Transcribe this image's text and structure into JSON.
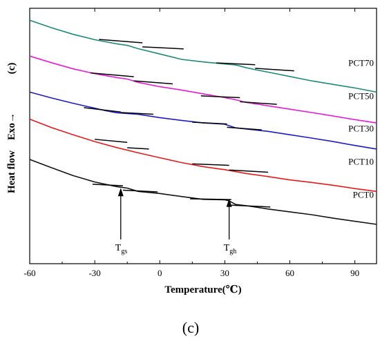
{
  "chart_data": {
    "type": "line",
    "title": "",
    "xlabel": "Temperature(℃)",
    "ylabel": "Heat flow",
    "ylabel_direction": "Exo→",
    "ylabel_marker": "(c)",
    "xlim": [
      -60,
      100
    ],
    "ylim": [
      0,
      100
    ],
    "x_ticks": [
      -60,
      -30,
      0,
      30,
      60,
      90
    ],
    "y_ticks": [],
    "grid": false,
    "legend": "none",
    "panel_label": "(c)",
    "series": [
      {
        "name": "PCT70",
        "color": "#1b8a7a",
        "x": [
          -60,
          -50,
          -40,
          -30,
          -20,
          -15,
          -10,
          0,
          10,
          20,
          30,
          35,
          40,
          45,
          50,
          60,
          70,
          80,
          90,
          100
        ],
        "y": [
          95.3,
          92.4,
          89.8,
          87.7,
          86.1,
          85.5,
          84.2,
          82.1,
          80.0,
          79.0,
          78.2,
          77.8,
          76.7,
          75.8,
          75.0,
          73.3,
          71.6,
          70.2,
          68.8,
          67.2
        ]
      },
      {
        "name": "PCT50",
        "color": "#e81ad6",
        "x": [
          -60,
          -50,
          -40,
          -30,
          -20,
          -15,
          -10,
          0,
          10,
          20,
          30,
          35,
          40,
          45,
          50,
          60,
          70,
          80,
          90,
          100
        ],
        "y": [
          81.3,
          78.7,
          76.3,
          74.4,
          72.9,
          72.3,
          71.0,
          69.3,
          68.0,
          66.5,
          65.0,
          64.2,
          63.1,
          62.5,
          61.8,
          60.5,
          59.2,
          57.8,
          56.4,
          55.1
        ]
      },
      {
        "name": "PCT30",
        "color": "#1a1ac8",
        "x": [
          -60,
          -50,
          -40,
          -30,
          -25,
          -20,
          -15,
          -10,
          0,
          10,
          20,
          25,
          30,
          35,
          40,
          50,
          60,
          70,
          80,
          90,
          100
        ],
        "y": [
          67.2,
          64.9,
          62.8,
          60.9,
          59.9,
          59.1,
          58.8,
          58.5,
          57.2,
          56.1,
          55.1,
          54.9,
          54.6,
          53.2,
          52.7,
          51.8,
          50.5,
          49.2,
          47.8,
          46.3,
          44.9
        ]
      },
      {
        "name": "PCT10",
        "color": "#e8181a",
        "x": [
          -60,
          -50,
          -40,
          -30,
          -20,
          -10,
          0,
          10,
          20,
          30,
          40,
          50,
          60,
          70,
          80,
          90,
          100
        ],
        "y": [
          56.6,
          53.3,
          50.5,
          47.8,
          45.5,
          43.4,
          41.5,
          39.6,
          38.0,
          36.8,
          35.3,
          34.1,
          32.8,
          31.8,
          30.7,
          29.4,
          28.3
        ]
      },
      {
        "name": "PCT0",
        "color": "#111111",
        "x": [
          -60,
          -50,
          -40,
          -30,
          -20,
          -15,
          -10,
          0,
          10,
          20,
          30,
          32,
          35,
          40,
          50,
          60,
          70,
          80,
          90,
          100
        ],
        "y": [
          40.8,
          37.6,
          34.5,
          32.0,
          30.2,
          29.6,
          28.3,
          27.5,
          26.3,
          25.2,
          25.0,
          24.6,
          23.2,
          22.7,
          21.4,
          20.3,
          19.2,
          17.8,
          16.6,
          15.4
        ]
      }
    ],
    "tangent_segments": [
      {
        "series": "PCT70",
        "x": [
          -28,
          -8
        ],
        "y": [
          87.8,
          86.5
        ]
      },
      {
        "series": "PCT70",
        "x": [
          -8,
          11
        ],
        "y": [
          84.9,
          84.1
        ]
      },
      {
        "series": "PCT70",
        "x": [
          26,
          44
        ],
        "y": [
          78.6,
          77.9
        ]
      },
      {
        "series": "PCT70",
        "x": [
          44,
          62
        ],
        "y": [
          76.5,
          75.5
        ]
      },
      {
        "series": "PCT50",
        "x": [
          -32,
          -12
        ],
        "y": [
          74.7,
          73.2
        ]
      },
      {
        "series": "PCT50",
        "x": [
          -12,
          6
        ],
        "y": [
          71.6,
          70.4
        ]
      },
      {
        "series": "PCT50",
        "x": [
          19,
          37
        ],
        "y": [
          65.7,
          65.0
        ]
      },
      {
        "series": "PCT50",
        "x": [
          37,
          54
        ],
        "y": [
          63.4,
          62.4
        ]
      },
      {
        "series": "PCT30",
        "x": [
          -35,
          -18
        ],
        "y": [
          61.1,
          59.4
        ]
      },
      {
        "series": "PCT30",
        "x": [
          -18,
          -3
        ],
        "y": [
          59.2,
          58.5
        ]
      },
      {
        "series": "PCT30",
        "x": [
          15,
          31
        ],
        "y": [
          55.4,
          54.7
        ]
      },
      {
        "series": "PCT30",
        "x": [
          31,
          47
        ],
        "y": [
          53.4,
          52.4
        ]
      },
      {
        "series": "PCT10",
        "x": [
          -30,
          -15
        ],
        "y": [
          48.7,
          47.5
        ]
      },
      {
        "series": "PCT10",
        "x": [
          -15,
          -5
        ],
        "y": [
          45.4,
          44.9
        ]
      },
      {
        "series": "PCT10",
        "x": [
          15,
          32
        ],
        "y": [
          39.1,
          38.5
        ]
      },
      {
        "series": "PCT10",
        "x": [
          32,
          50
        ],
        "y": [
          36.7,
          35.8
        ]
      },
      {
        "series": "PCT0",
        "x": [
          -31,
          -17
        ],
        "y": [
          31.1,
          30.5
        ]
      },
      {
        "series": "PCT0",
        "x": [
          -17,
          -1
        ],
        "y": [
          28.8,
          28.1
        ]
      },
      {
        "series": "PCT0",
        "x": [
          14,
          33
        ],
        "y": [
          25.4,
          25.1
        ]
      },
      {
        "series": "PCT0",
        "x": [
          33,
          51
        ],
        "y": [
          22.9,
          22.2
        ]
      }
    ],
    "series_labels": [
      {
        "text": "PCT70",
        "x": 100,
        "y": 77.5
      },
      {
        "text": "PCT50",
        "x": 100,
        "y": 64.5
      },
      {
        "text": "PCT30",
        "x": 100,
        "y": 51.8
      },
      {
        "text": "PCT10",
        "x": 100,
        "y": 38.8
      },
      {
        "text": "PCT0",
        "x": 100,
        "y": 25.8
      }
    ],
    "annotations": [
      {
        "label": "T",
        "sub": "gs",
        "x": -18,
        "arrow_from_y": 9.5,
        "arrow_to_y": 29.4
      },
      {
        "label": "T",
        "sub": "gh",
        "x": 32,
        "arrow_from_y": 9.5,
        "arrow_to_y": 25.2
      }
    ]
  }
}
